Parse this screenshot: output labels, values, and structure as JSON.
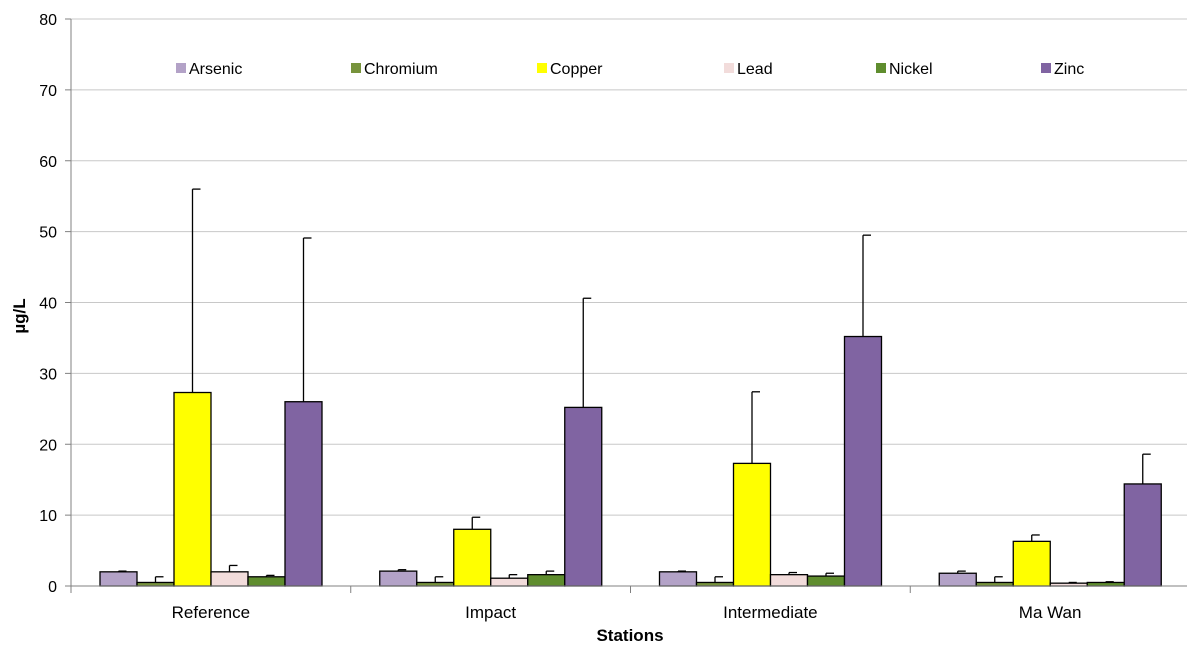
{
  "chart_data": {
    "type": "bar",
    "title": "",
    "xlabel": "Stations",
    "ylabel": "µg/L",
    "ylim": [
      0,
      80
    ],
    "yticks": [
      0,
      10,
      20,
      30,
      40,
      50,
      60,
      70,
      80
    ],
    "grid": true,
    "legend_position": "top",
    "categories": [
      "Reference",
      "Impact",
      "Intermediate",
      "Ma Wan"
    ],
    "series": [
      {
        "name": "Arsenic",
        "color": "#B3A2C7",
        "values": [
          2.0,
          2.1,
          2.0,
          1.8
        ],
        "error_upper": [
          2.1,
          2.3,
          2.1,
          2.1
        ]
      },
      {
        "name": "Chromium",
        "color": "#77933C",
        "values": [
          0.5,
          0.5,
          0.5,
          0.5
        ],
        "error_upper": [
          1.3,
          1.3,
          1.3,
          1.3
        ]
      },
      {
        "name": "Copper",
        "color": "#FFFF00",
        "values": [
          27.3,
          8.0,
          17.3,
          6.3
        ],
        "error_upper": [
          56.0,
          9.7,
          27.4,
          7.2
        ]
      },
      {
        "name": "Lead",
        "color": "#F2DCDB",
        "values": [
          2.0,
          1.1,
          1.6,
          0.4
        ],
        "error_upper": [
          2.9,
          1.6,
          1.9,
          0.5
        ]
      },
      {
        "name": "Nickel",
        "color": "#5F8D2E",
        "values": [
          1.3,
          1.6,
          1.4,
          0.5
        ],
        "error_upper": [
          1.5,
          2.1,
          1.8,
          0.6
        ]
      },
      {
        "name": "Zinc",
        "color": "#8064A2",
        "values": [
          26.0,
          25.2,
          35.2,
          14.4
        ],
        "error_upper": [
          49.1,
          40.6,
          49.5,
          18.6
        ]
      }
    ]
  }
}
